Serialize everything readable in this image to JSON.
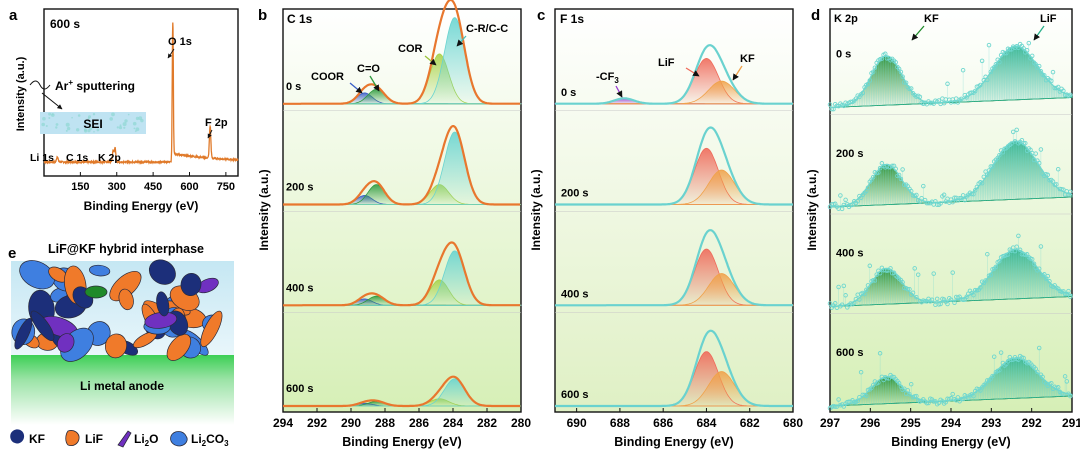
{
  "colors": {
    "frame": "#111111",
    "survey_line": "#e07a2a",
    "c1s_envelope": "#e8772e",
    "f1s_envelope": "#6ad2cf",
    "k2p_points": "#6fd7cf",
    "coor": "#3a5fc7",
    "c_o": "#2f9a3e",
    "cor": "#a8d24a",
    "c_r": "#69d4d0",
    "cf3": "#9a3ad0",
    "lif_peak": "#ef6a5a",
    "kf_peak": "#f0a24a",
    "k_kf": "#1f8a2a",
    "k_lif": "#2ab08a",
    "li_metal": "#58d66a",
    "sei_layer": "#bfe3f2",
    "marker_kf": "#1c2f7a",
    "marker_lif": "#f07a2a",
    "marker_li2o": "#7030c0",
    "marker_li2co3": "#3f7fe0"
  },
  "panel_a": {
    "letter": "a",
    "label": "600 s",
    "xlabel": "Binding Energy (eV)",
    "ylabel": "Intensity (a.u.)",
    "xticks": [
      "150",
      "300",
      "450",
      "600",
      "750"
    ],
    "annotations": {
      "o1s": "O 1s",
      "f2p": "F 2p",
      "li1s": "Li 1s",
      "c1s": "C 1s",
      "k2p": "K 2p",
      "ar": "Ar",
      "ar_sup": "+",
      "sputter": " sputtering",
      "sei": "SEI"
    }
  },
  "panel_b": {
    "letter": "b",
    "title": "C 1s",
    "xlabel": "Binding Energy (eV)",
    "ylabel": "Intensity (a.u.)",
    "xticks": [
      "294",
      "292",
      "290",
      "288",
      "286",
      "284",
      "282",
      "280"
    ],
    "times": [
      "0 s",
      "200 s",
      "400 s",
      "600 s"
    ],
    "peak_labels": {
      "coor": "COOR",
      "c_o": "C=O",
      "cor": "COR",
      "c_r": "C-R/C-C"
    }
  },
  "panel_c": {
    "letter": "c",
    "title": "F 1s",
    "xlabel": "Binding Energy (eV)",
    "ylabel": "Intensity (a.u.)",
    "xticks": [
      "690",
      "688",
      "686",
      "684",
      "682",
      "680"
    ],
    "times": [
      "0 s",
      "200 s",
      "400 s",
      "600 s"
    ],
    "peak_labels": {
      "cf3": "-CF",
      "cf3_sub": "3",
      "lif": "LiF",
      "kf": "KF"
    }
  },
  "panel_d": {
    "letter": "d",
    "title": "K 2p",
    "xlabel": "Binding Energy (eV)",
    "ylabel": "Intensity (a.u.)",
    "xticks": [
      "297",
      "296",
      "295",
      "294",
      "293",
      "292",
      "291"
    ],
    "times": [
      "0 s",
      "200 s",
      "400 s",
      "600 s"
    ],
    "peak_labels": {
      "kf": "KF",
      "lif": "LiF"
    }
  },
  "panel_e": {
    "letter": "e",
    "title": "LiF@KF hybrid interphase",
    "anode": "Li metal anode",
    "legend": {
      "kf": "KF",
      "lif": "LiF",
      "li2o": "Li",
      "li2o_sub": "2",
      "li2o_end": "O",
      "li2co3": "Li",
      "li2co3_sub": "2",
      "li2co3_end": "CO",
      "li2co3_sub2": "3"
    }
  },
  "chart_data": [
    {
      "type": "line",
      "title": "600 s",
      "xlabel": "Binding Energy (eV)",
      "ylabel": "Intensity (a.u.)",
      "xlim": [
        0,
        800
      ],
      "peaks": [
        {
          "name": "Li 1s",
          "x": 55,
          "intensity": 0.04
        },
        {
          "name": "C 1s",
          "x": 285,
          "intensity": 0.08
        },
        {
          "name": "K 2p",
          "x": 293,
          "intensity": 0.1
        },
        {
          "name": "O 1s",
          "x": 531,
          "intensity": 1.0
        },
        {
          "name": "F 2p",
          "x": 685,
          "intensity": 0.23
        }
      ]
    },
    {
      "type": "line",
      "title": "C 1s",
      "xlabel": "Binding Energy (eV)",
      "ylabel": "Intensity (a.u.)",
      "xlim": [
        294,
        280
      ],
      "components": [
        {
          "name": "COOR",
          "center": 289.2
        },
        {
          "name": "C=O",
          "center": 288.5
        },
        {
          "name": "COR",
          "center": 284.8
        },
        {
          "name": "C-R/C-C",
          "center": 283.9
        }
      ],
      "series": [
        {
          "name": "0 s",
          "heights": {
            "COOR": 0.12,
            "C=O": 0.16,
            "COR": 0.55,
            "C-R/C-C": 0.95
          }
        },
        {
          "name": "200 s",
          "heights": {
            "COOR": 0.1,
            "C=O": 0.22,
            "COR": 0.22,
            "C-R/C-C": 0.8
          }
        },
        {
          "name": "400 s",
          "heights": {
            "COOR": 0.07,
            "C=O": 0.1,
            "COR": 0.28,
            "C-R/C-C": 0.6
          }
        },
        {
          "name": "600 s",
          "heights": {
            "COOR": 0.03,
            "C=O": 0.05,
            "COR": 0.08,
            "C-R/C-C": 0.3
          }
        }
      ]
    },
    {
      "type": "line",
      "title": "F 1s",
      "xlabel": "Binding Energy (eV)",
      "ylabel": "Intensity (a.u.)",
      "xlim": [
        691,
        680
      ],
      "components": [
        {
          "name": "-CF3",
          "center": 687.8
        },
        {
          "name": "LiF",
          "center": 684.0
        },
        {
          "name": "KF",
          "center": 683.3
        }
      ],
      "series": [
        {
          "name": "0 s",
          "heights": {
            "-CF3": 0.06,
            "LiF": 0.5,
            "KF": 0.25
          }
        },
        {
          "name": "200 s",
          "heights": {
            "-CF3": 0.0,
            "LiF": 0.62,
            "KF": 0.38
          }
        },
        {
          "name": "400 s",
          "heights": {
            "-CF3": 0.0,
            "LiF": 0.62,
            "KF": 0.35
          }
        },
        {
          "name": "600 s",
          "heights": {
            "-CF3": 0.0,
            "LiF": 0.6,
            "KF": 0.38
          }
        }
      ]
    },
    {
      "type": "scatter",
      "title": "K 2p",
      "xlabel": "Binding Energy (eV)",
      "ylabel": "Intensity (a.u.)",
      "xlim": [
        297,
        291
      ],
      "components": [
        {
          "name": "KF",
          "center": 295.6
        },
        {
          "name": "LiF",
          "center": 292.4
        }
      ],
      "series": [
        {
          "name": "0 s",
          "heights": {
            "KF": 0.55,
            "LiF": 0.6
          }
        },
        {
          "name": "200 s",
          "heights": {
            "KF": 0.45,
            "LiF": 0.65
          }
        },
        {
          "name": "400 s",
          "heights": {
            "KF": 0.4,
            "LiF": 0.55
          }
        },
        {
          "name": "600 s",
          "heights": {
            "KF": 0.3,
            "LiF": 0.45
          }
        }
      ]
    }
  ]
}
